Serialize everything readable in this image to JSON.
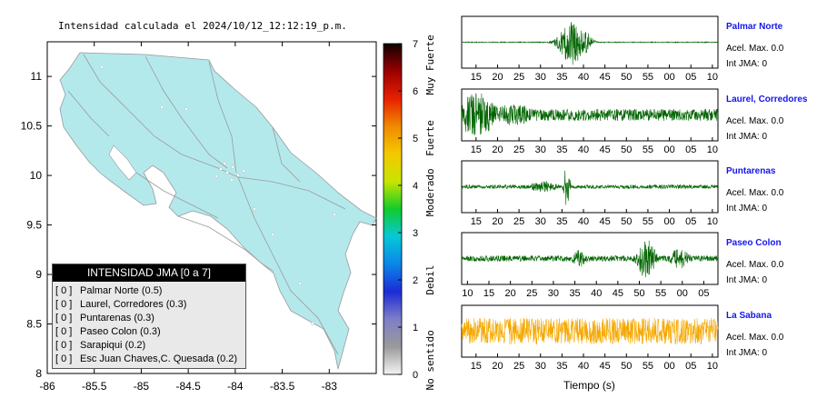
{
  "title": "Intensidad calculada el 2024/10/12_12:12:19_p.m.",
  "map": {
    "x_ticks": [
      "-86",
      "-85.5",
      "-85",
      "-84.5",
      "-84",
      "-83.5",
      "-83"
    ],
    "y_ticks": [
      "11",
      "10.5",
      "10",
      "9.5",
      "9",
      "8.5",
      "8"
    ],
    "xlim": [
      -86,
      -82.5
    ],
    "ylim": [
      8,
      11.35
    ],
    "land_color": "#b4e9ec",
    "background_color": "#ffffff"
  },
  "legend": {
    "title": "INTENSIDAD JMA [0 a 7]",
    "items": [
      {
        "code": "[ 0 ]",
        "label": "Palmar Norte (0.5)"
      },
      {
        "code": "[ 0 ]",
        "label": "Laurel, Corredores (0.3)"
      },
      {
        "code": "[ 0 ]",
        "label": "Puntarenas (0.3)"
      },
      {
        "code": "[ 0 ]",
        "label": "Paseo Colon (0.3)"
      },
      {
        "code": "[ 0 ]",
        "label": "Sarapiqui (0.2)"
      },
      {
        "code": "[ 0 ]",
        "label": "Esc Juan Chaves,C. Quesada (0.2)"
      }
    ]
  },
  "color_scale": {
    "ticks": [
      "0",
      "1",
      "2",
      "3",
      "4",
      "5",
      "6",
      "7"
    ],
    "categories": [
      "No sentido",
      "Debil",
      "Moderado",
      "Fuerte",
      "Muy Fuerte"
    ],
    "colors": [
      "#f4f4f4",
      "#9a9a9a",
      "#7e7ec8",
      "#1b2cd6",
      "#0a86e8",
      "#06c8d8",
      "#10cc2a",
      "#c8e400",
      "#f4c800",
      "#f08a00",
      "#e82000",
      "#9a0000",
      "#100000"
    ]
  },
  "waveforms": [
    {
      "station": "Palmar Norte",
      "accel": "Acel. Max. 0.0",
      "int": "Int JMA: 0",
      "color": "#006400",
      "ticks": [
        "15",
        "20",
        "25",
        "30",
        "35",
        "40",
        "45",
        "50",
        "55",
        "00",
        "05",
        "10"
      ],
      "first_tick_offset": 0.5,
      "noise": 0.02,
      "bursts": [
        [
          0.43,
          0.05,
          0.95
        ],
        [
          0.48,
          0.03,
          0.5
        ]
      ]
    },
    {
      "station": "Laurel, Corredores",
      "accel": "Acel. Max. 0.0",
      "int": "Int JMA: 0",
      "color": "#006400",
      "ticks": [
        "15",
        "20",
        "25",
        "30",
        "35",
        "40",
        "45",
        "50",
        "55",
        "00",
        "05",
        "10"
      ],
      "first_tick_offset": 0.5,
      "noise": 0.25,
      "bursts": [
        [
          0.06,
          0.08,
          0.95
        ],
        [
          0.2,
          0.1,
          0.45
        ]
      ]
    },
    {
      "station": "Puntarenas",
      "accel": "Acel. Max. 0.0",
      "int": "Int JMA: 0",
      "color": "#006400",
      "ticks": [
        "15",
        "20",
        "25",
        "30",
        "35",
        "40",
        "45",
        "50",
        "55",
        "00",
        "05",
        "10"
      ],
      "first_tick_offset": 0.5,
      "noise": 0.08,
      "bursts": [
        [
          0.41,
          0.012,
          0.95
        ],
        [
          0.32,
          0.06,
          0.25
        ]
      ]
    },
    {
      "station": "Paseo Colon",
      "accel": "Acel. Max. 0.0",
      "int": "Int JMA: 0",
      "color": "#006400",
      "ticks": [
        "10",
        "15",
        "20",
        "25",
        "30",
        "35",
        "40",
        "45",
        "50",
        "55",
        "00",
        "05"
      ],
      "first_tick_offset": 0.1,
      "noise": 0.12,
      "bursts": [
        [
          0.72,
          0.035,
          0.95
        ],
        [
          0.46,
          0.03,
          0.4
        ],
        [
          0.85,
          0.04,
          0.45
        ]
      ]
    },
    {
      "station": "La Sabana",
      "accel": "Acel. Max. 0.0",
      "int": "Int JMA: 0",
      "color": "#f5a800",
      "ticks": [
        "15",
        "20",
        "25",
        "30",
        "35",
        "40",
        "45",
        "50",
        "55",
        "00",
        "05",
        "10"
      ],
      "first_tick_offset": 0.5,
      "noise": 0.55,
      "bursts": [
        [
          0.4,
          0.15,
          0.4
        ]
      ]
    }
  ],
  "xlabel": "Tiempo (s)"
}
